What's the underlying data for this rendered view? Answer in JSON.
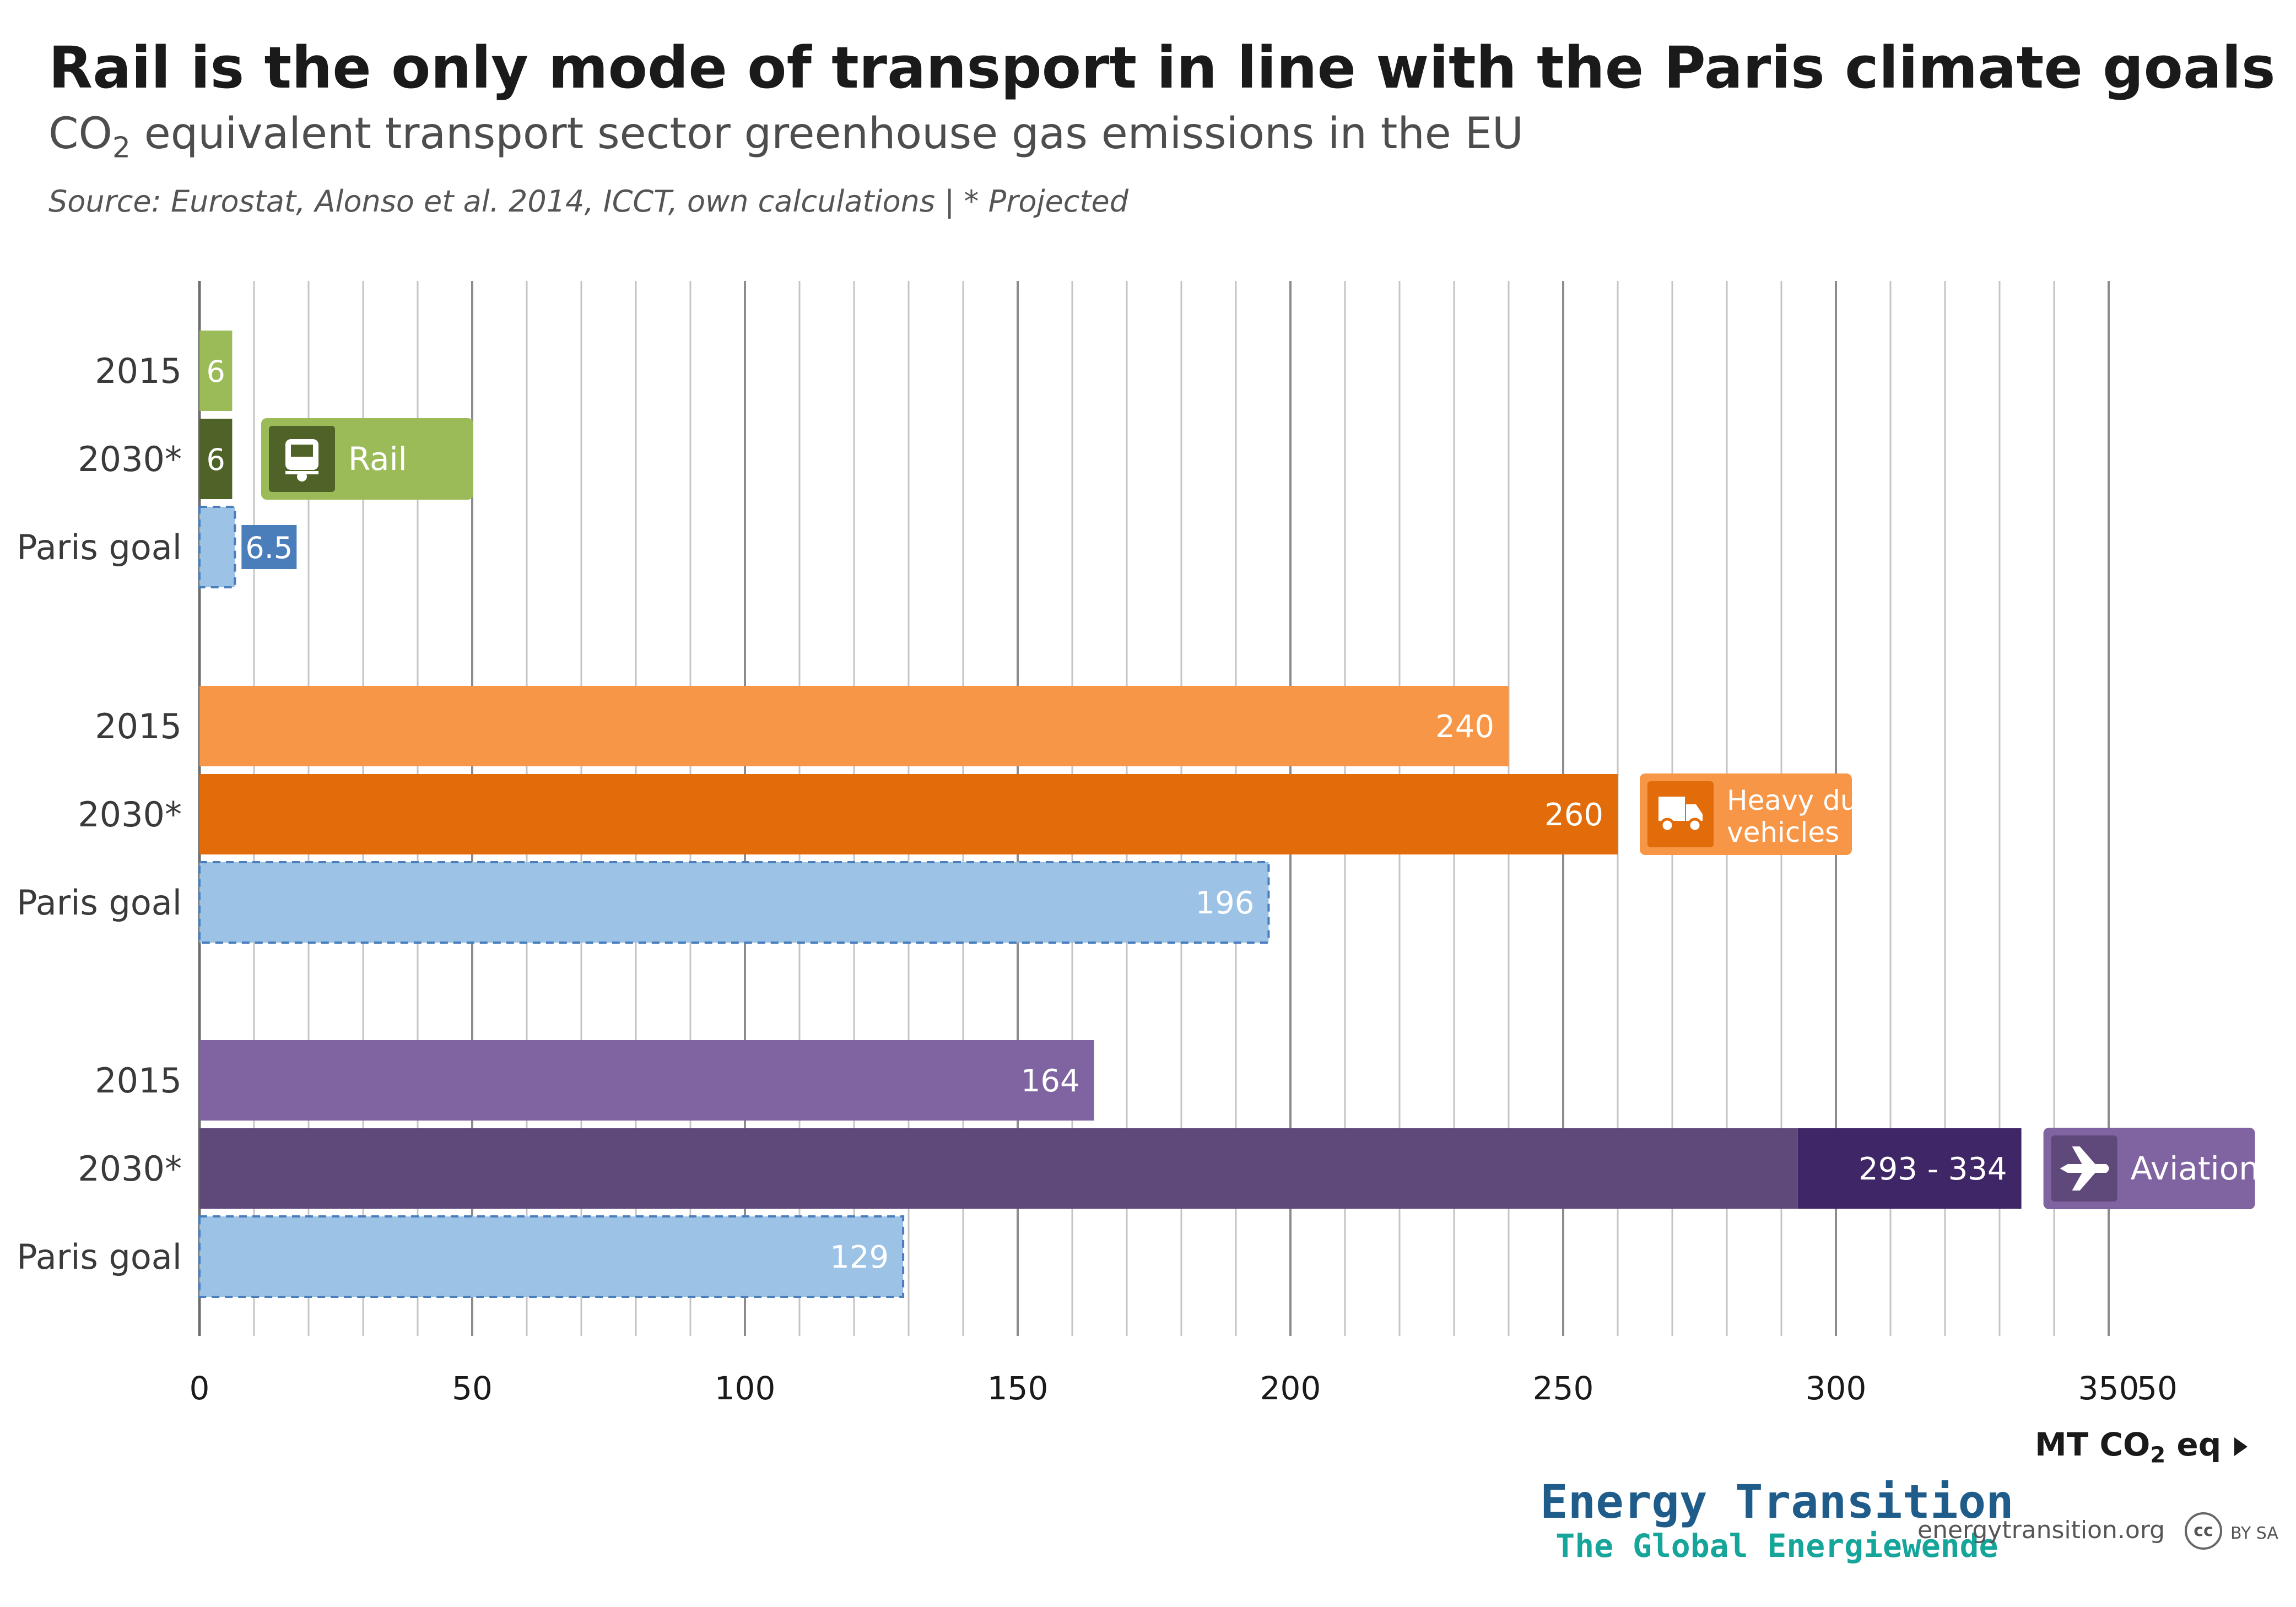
{
  "title": "Rail is the only mode of transport in line with the Paris climate goals",
  "subtitle_main": "CO",
  "subtitle_sub": "2",
  "subtitle_rest": " equivalent transport sector greenhouse gas emissions in the EU",
  "source": "Source:  Eurostat, Alonso et al. 2014, ICCT, own calculations | * Projected",
  "unit_label_main": "MT CO",
  "unit_label_sub": "2",
  "unit_label_rest": " eq",
  "unit_arrow_icon": "triangle-right-icon",
  "brand_line1": "Energy Transition",
  "brand_line2": "The Global Energiewende",
  "site": "energytransition.org",
  "license_cc": "cc",
  "license_text": "BY SA",
  "chart_data": {
    "type": "bar",
    "orientation": "horizontal",
    "xlim": [
      0,
      350
    ],
    "x_ticks": [
      0,
      50,
      100,
      150,
      200,
      250,
      300,
      350
    ],
    "x_tick_labels": [
      "0",
      "50",
      "100",
      "150",
      "200",
      "250",
      "300",
      "350"
    ],
    "partial_tick_label": "50",
    "grid": true,
    "groups": [
      {
        "name": "Rail",
        "icon": "train-icon",
        "label_bg": "#9bbb59",
        "icon_bg": "#4f6228",
        "bars": [
          {
            "category": "2015",
            "value": 6,
            "label": "6",
            "color": "#9bbb59",
            "style": "solid"
          },
          {
            "category": "2030*",
            "value": 6,
            "label": "6",
            "color": "#4f6228",
            "style": "solid"
          },
          {
            "category": "Paris goal",
            "value": 6.5,
            "label": "6.5",
            "color": "#9cc3e6",
            "style": "dashed",
            "label_bg": "#4a7ebb"
          }
        ]
      },
      {
        "name": "Heavy duty vehicles",
        "name_lines": [
          "Heavy duty",
          "vehicles"
        ],
        "icon": "truck-icon",
        "label_bg": "#f79646",
        "icon_bg": "#e36c0a",
        "bars": [
          {
            "category": "2015",
            "value": 240,
            "label": "240",
            "color": "#f79646",
            "style": "solid"
          },
          {
            "category": "2030*",
            "value": 260,
            "label": "260",
            "color": "#e36c0a",
            "style": "solid"
          },
          {
            "category": "Paris goal",
            "value": 196,
            "label": "196",
            "color": "#9cc3e6",
            "style": "dashed"
          }
        ]
      },
      {
        "name": "Aviation",
        "icon": "airplane-icon",
        "label_bg": "#8064a2",
        "icon_bg": "#5f497a",
        "bars": [
          {
            "category": "2015",
            "value": 164,
            "label": "164",
            "color": "#8064a2",
            "style": "solid"
          },
          {
            "category": "2030*",
            "value": 293,
            "value_high": 334,
            "label": "293 - 334",
            "color": "#5f497a",
            "color_range": "#3f2666",
            "style": "solid"
          },
          {
            "category": "Paris goal",
            "value": 129,
            "label": "129",
            "color": "#9cc3e6",
            "style": "dashed"
          }
        ]
      }
    ]
  }
}
